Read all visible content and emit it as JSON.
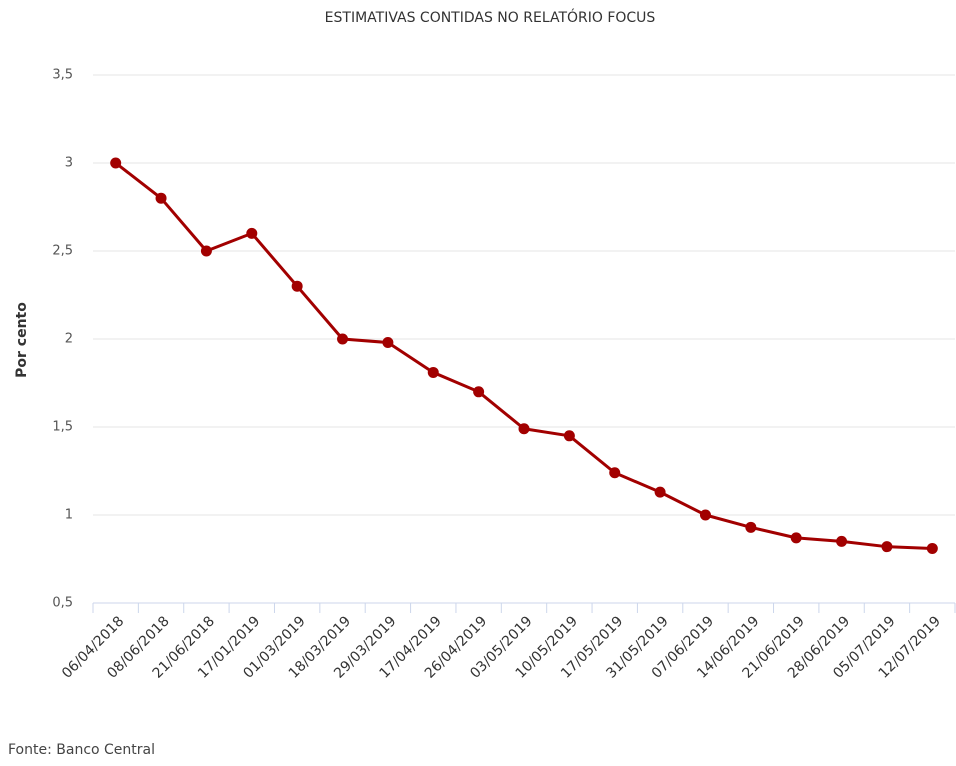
{
  "chart_data": {
    "type": "line",
    "title": "ESTIMATIVAS CONTIDAS NO RELATÓRIO FOCUS",
    "y_label": "Por cento",
    "source": "Fonte: Banco Central",
    "categories": [
      "06/04/2018",
      "08/06/2018",
      "21/06/2018",
      "17/01/2019",
      "01/03/2019",
      "18/03/2019",
      "29/03/2019",
      "17/04/2019",
      "26/04/2019",
      "03/05/2019",
      "10/05/2019",
      "17/05/2019",
      "31/05/2019",
      "07/06/2019",
      "14/06/2019",
      "21/06/2019",
      "28/06/2019",
      "05/07/2019",
      "12/07/2019"
    ],
    "values": [
      3.0,
      2.8,
      2.5,
      2.6,
      2.3,
      2.0,
      1.98,
      1.81,
      1.7,
      1.49,
      1.45,
      1.24,
      1.13,
      1.0,
      0.93,
      0.87,
      0.85,
      0.82,
      0.81
    ],
    "color": "#a20000",
    "ylim": [
      0.5,
      3.5
    ],
    "yticks": [
      {
        "value": 0.5,
        "label": "0,5"
      },
      1,
      {
        "value": 1.5,
        "label": "1,5"
      },
      2,
      {
        "value": 2.5,
        "label": "2,5"
      },
      3,
      {
        "value": 3.5,
        "label": "3,5"
      }
    ],
    "grid": true
  }
}
